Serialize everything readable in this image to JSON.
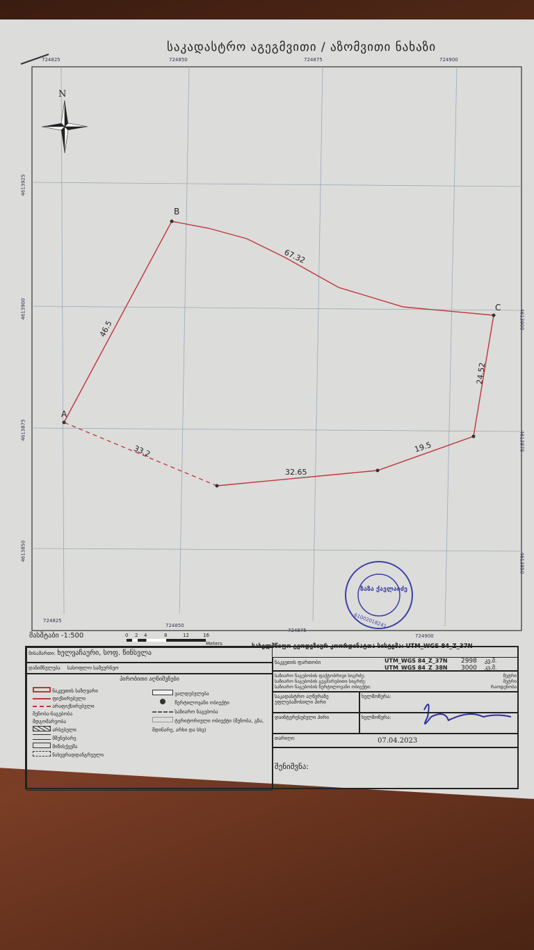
{
  "title": "საკადასტრო აგეგმვითი / აზომვითი ნახაზი",
  "grid": {
    "eastings": [
      "724825",
      "724850",
      "724875",
      "724900"
    ],
    "northings": [
      "4613925",
      "4613900",
      "4613875",
      "4613850"
    ]
  },
  "north_label": "N",
  "parcel": {
    "points": [
      "A",
      "B",
      "C"
    ],
    "segments": [
      "46.5",
      "67.32",
      "24.52",
      "19.5",
      "32.65",
      "33.2"
    ],
    "line_color": "#c0343a"
  },
  "scale": {
    "label": "მასშტაბი -1:500",
    "ticks": [
      "0",
      "2",
      "4",
      "8",
      "12",
      "16"
    ],
    "unit": "Meters"
  },
  "coord_system": "სახელმწიფო გეოდეზიურ კოორდინატთა სისტემა:  UTM_WGS 84_Z_37N",
  "address": {
    "label": "მისამართი:",
    "value": "ხელვაჩაური, სოფ. წინსვლა"
  },
  "purpose": {
    "label": "დანიშნულება",
    "value": "სასოფლო სამეურნეო"
  },
  "legend": {
    "title": "პირობითი აღნიშვნები",
    "items": [
      "ნაკვეთის საზღვარი",
      "ფიქსირებული",
      "არაფიქსირებული",
      "შენობა-ნაგებობა",
      "მდგომარეობა",
      "არსებული",
      "მშენებარე",
      "მიწისქვეშა",
      "ნახევრადდანგრეული",
      "ვალდებულება",
      "წერტილოვანი ობიექტი",
      "საზიარო ნაგებობა",
      "ტერიტორიული ობიექტი (შენობა, გზა, მდინარე, არხი და სხვ)"
    ]
  },
  "area": {
    "label": "ნაკვეთის ფართობი",
    "rows": [
      {
        "system": "UTM_WGS 84_Z_37N",
        "value": "2998",
        "unit": "კვ.მ."
      },
      {
        "system": "UTM_WGS 84_Z_38N",
        "value": "3000",
        "unit": "კვ.მ."
      }
    ]
  },
  "shared": [
    {
      "label": "საზიარო ნაგებობის ფაქტობრივი სიგრძე:",
      "unit": "მეტრი"
    },
    {
      "label": "საზიარო ნაგებობის გეგმარებითი სიგრძე:",
      "unit": "მეტრი"
    },
    {
      "label": "საზიარო ნაგებობის წერტილოვანი ობიექტი:",
      "unit": "რაოდენობა"
    }
  ],
  "surveyor": {
    "label": "საკადასტრო აღწერაზე უფლებამოსილი პირი",
    "sign": "ხელმოწერა:"
  },
  "interested": {
    "label": "დაინტერესებული პირი",
    "sign": "ხელმოწერა:"
  },
  "date": {
    "label": "თარიღი:",
    "value": "07.04.2023"
  },
  "note": {
    "label": "შენიშვნა:"
  },
  "stamp": {
    "name": "ზაზა ქავლაიძე",
    "number": "61002018241"
  }
}
